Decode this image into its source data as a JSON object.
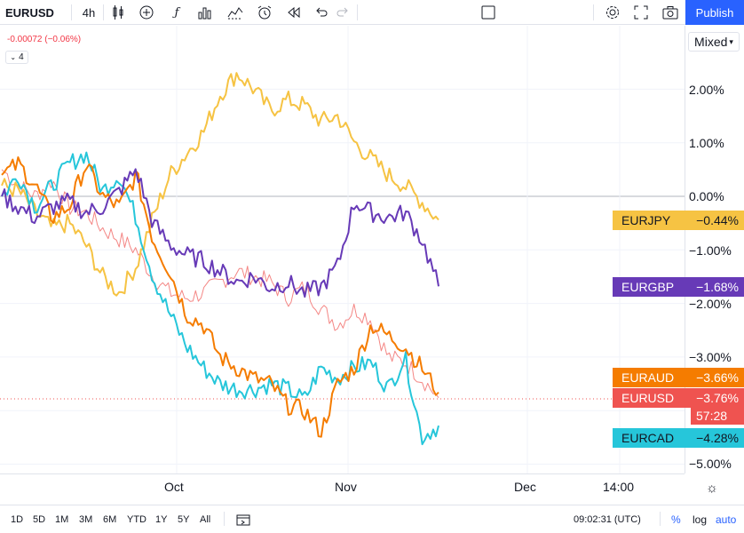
{
  "toolbar": {
    "symbol": "EURUSD",
    "interval": "4h",
    "publish_label": "Publish",
    "icons": [
      "candles-icon",
      "plus-circle-icon",
      "fx-icon",
      "bar-chart-icon",
      "indicator-icon",
      "alarm-icon",
      "replay-icon",
      "undo-icon",
      "redo-icon",
      "square-icon",
      "gear-icon",
      "fullscreen-icon",
      "camera-icon"
    ]
  },
  "legend": {
    "change_text": "-0.00072 (−0.06%)",
    "collapsed_count": "4"
  },
  "price_scale": {
    "mode": "Mixed",
    "ticks": [
      "2.00%",
      "1.00%",
      "0.00%",
      "−1.00%",
      "−2.00%",
      "−3.00%",
      "−5.00%"
    ]
  },
  "series_tags": [
    {
      "name": "EURJPY",
      "value": "−0.44%",
      "color": "#f6c343"
    },
    {
      "name": "EURGBP",
      "value": "−1.68%",
      "color": "#673ab7"
    },
    {
      "name": "EURAUD",
      "value": "−3.66%",
      "color": "#f57c00"
    },
    {
      "name": "EURUSD",
      "value": "−3.76%",
      "color": "#ef5350"
    },
    {
      "name": "EURCAD",
      "value": "−4.28%",
      "color": "#26c6da"
    }
  ],
  "countdown": "57:28",
  "time_axis": {
    "ticks": [
      "Oct",
      "Nov",
      "Dec",
      "14:00"
    ]
  },
  "bottom_bar": {
    "ranges": [
      "1D",
      "5D",
      "1M",
      "3M",
      "6M",
      "YTD",
      "1Y",
      "5Y",
      "All"
    ],
    "clock": "09:02:31 (UTC)",
    "percent_label": "%",
    "log_label": "log",
    "auto_label": "auto"
  },
  "chart_data": {
    "type": "line",
    "x_ticks": [
      "Oct",
      "Nov",
      "Dec",
      "14:00"
    ],
    "y_unit": "%",
    "yaxis_ticks": [
      2,
      1,
      0,
      -1,
      -2,
      -3,
      -5
    ],
    "ylim": [
      -5.2,
      2.8
    ],
    "series": [
      {
        "name": "EURJPY",
        "color": "#f6c343",
        "values": [
          0.2,
          0.1,
          -0.3,
          -0.6,
          -0.5,
          -0.9,
          -1.5,
          -1.8,
          -1.3,
          -0.4,
          0.4,
          0.8,
          1.2,
          1.9,
          2.3,
          2.0,
          1.6,
          1.8,
          1.7,
          1.4,
          1.5,
          1.0,
          0.7,
          0.4,
          0.2,
          -0.1,
          -0.44
        ]
      },
      {
        "name": "EURGBP",
        "color": "#673ab7",
        "values": [
          0.0,
          -0.2,
          -0.4,
          -0.2,
          -0.1,
          -0.3,
          -0.2,
          0.1,
          0.5,
          -0.5,
          -0.9,
          -1.1,
          -1.2,
          -1.4,
          -1.6,
          -1.5,
          -1.7,
          -1.6,
          -1.8,
          -1.7,
          -1.3,
          -0.1,
          -0.3,
          -0.4,
          -0.3,
          -0.8,
          -1.68
        ]
      },
      {
        "name": "EURAUD",
        "color": "#f57c00",
        "values": [
          0.4,
          0.6,
          0.2,
          -0.4,
          -0.2,
          0.6,
          0.0,
          -0.2,
          0.4,
          -0.8,
          -1.4,
          -2.2,
          -2.4,
          -3.0,
          -3.2,
          -3.4,
          -3.5,
          -3.9,
          -4.0,
          -4.4,
          -3.5,
          -3.2,
          -2.4,
          -2.6,
          -2.8,
          -3.2,
          -3.66
        ]
      },
      {
        "name": "EURUSD",
        "color": "#ef5350",
        "values": [
          0.5,
          0.2,
          0.0,
          0.3,
          -0.2,
          -0.3,
          -0.6,
          -0.8,
          -1.0,
          -1.5,
          -1.8,
          -1.9,
          -1.8,
          -1.6,
          -1.4,
          -1.5,
          -1.6,
          -1.9,
          -1.7,
          -2.1,
          -2.4,
          -2.1,
          -2.3,
          -3.0,
          -3.1,
          -3.4,
          -3.76
        ]
      },
      {
        "name": "EURCAD",
        "color": "#26c6da",
        "values": [
          0.0,
          0.4,
          -0.2,
          0.2,
          0.6,
          0.8,
          0.1,
          0.4,
          -0.4,
          -1.5,
          -2.2,
          -2.8,
          -3.2,
          -3.5,
          -3.6,
          -3.6,
          -3.5,
          -3.6,
          -3.8,
          -3.2,
          -3.4,
          -3.2,
          -3.1,
          -3.6,
          -3.0,
          -4.5,
          -4.28
        ]
      }
    ]
  }
}
